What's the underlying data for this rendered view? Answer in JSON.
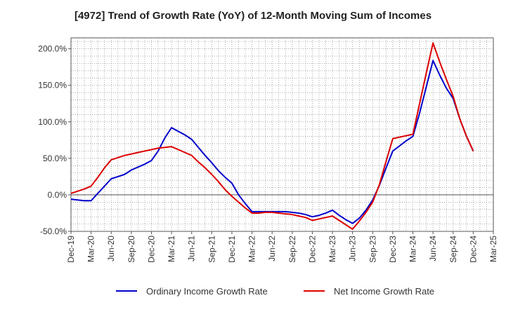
{
  "chart_data": {
    "type": "line",
    "title": "[4972]  Trend of Growth Rate (YoY) of 12-Month Moving Sum of Incomes",
    "xlabel": "",
    "ylabel": "",
    "ylim": [
      -50,
      215
    ],
    "y_ticks": [
      -50,
      0,
      50,
      100,
      150,
      200
    ],
    "y_tick_labels": [
      "-50.0%",
      "0.0%",
      "50.0%",
      "100.0%",
      "150.0%",
      "200.0%"
    ],
    "x_tick_labels": [
      "Dec-19",
      "Mar-20",
      "Jun-20",
      "Sep-20",
      "Dec-20",
      "Mar-21",
      "Jun-21",
      "Sep-21",
      "Dec-21",
      "Mar-22",
      "Jun-22",
      "Sep-22",
      "Dec-22",
      "Mar-23",
      "Jun-23",
      "Sep-23",
      "Dec-23",
      "Mar-24",
      "Jun-24",
      "Sep-24",
      "Dec-24",
      "Mar-25"
    ],
    "x": [
      "Dec-19",
      "Jan-20",
      "Feb-20",
      "Mar-20",
      "Apr-20",
      "May-20",
      "Jun-20",
      "Jul-20",
      "Aug-20",
      "Sep-20",
      "Oct-20",
      "Nov-20",
      "Dec-20",
      "Jan-21",
      "Feb-21",
      "Mar-21",
      "Apr-21",
      "May-21",
      "Jun-21",
      "Jul-21",
      "Aug-21",
      "Sep-21",
      "Oct-21",
      "Nov-21",
      "Dec-21",
      "Jan-22",
      "Feb-22",
      "Mar-22",
      "Apr-22",
      "May-22",
      "Jun-22",
      "Jul-22",
      "Aug-22",
      "Sep-22",
      "Oct-22",
      "Nov-22",
      "Dec-22",
      "Jan-23",
      "Feb-23",
      "Mar-23",
      "Apr-23",
      "May-23",
      "Jun-23",
      "Jul-23",
      "Aug-23",
      "Sep-23",
      "Oct-23",
      "Nov-23",
      "Dec-23",
      "Jan-24",
      "Feb-24",
      "Mar-24",
      "Apr-24",
      "May-24",
      "Jun-24",
      "Jul-24",
      "Aug-24",
      "Sep-24",
      "Oct-24",
      "Nov-24",
      "Dec-24",
      "Jan-25",
      "Feb-25",
      "Mar-25"
    ],
    "grid": true,
    "legend_position": "bottom",
    "series": [
      {
        "name": "Ordinary Income Growth Rate",
        "color": "#0000cc",
        "values": [
          -6,
          -7,
          -8,
          -8,
          2,
          12,
          22,
          25,
          28,
          34,
          38,
          42,
          47,
          60,
          78,
          92,
          87,
          82,
          76,
          65,
          54,
          44,
          33,
          24,
          16,
          0,
          -12,
          -23,
          -23,
          -23,
          -23,
          -23,
          -23,
          -24,
          -25,
          -27,
          -30,
          -28,
          -25,
          -21,
          -28,
          -34,
          -39,
          -32,
          -21,
          -7,
          13,
          37,
          60,
          67,
          74,
          80,
          112,
          148,
          184,
          164,
          146,
          132,
          104,
          80,
          60,
          null,
          null,
          null
        ]
      },
      {
        "name": "Net Income Growth Rate",
        "color": "#dd0000",
        "values": [
          2,
          5,
          8,
          12,
          24,
          37,
          48,
          51,
          54,
          56,
          58,
          60,
          62,
          64,
          65,
          66,
          62,
          58,
          54,
          45,
          37,
          28,
          18,
          7,
          -2,
          -10,
          -18,
          -25,
          -25,
          -24,
          -24,
          -25,
          -26,
          -27,
          -29,
          -31,
          -35,
          -33,
          -31,
          -29,
          -35,
          -41,
          -47,
          -36,
          -24,
          -10,
          14,
          46,
          77,
          79,
          81,
          83,
          125,
          167,
          208,
          182,
          158,
          135,
          104,
          80,
          60,
          null,
          null,
          null
        ]
      }
    ]
  }
}
